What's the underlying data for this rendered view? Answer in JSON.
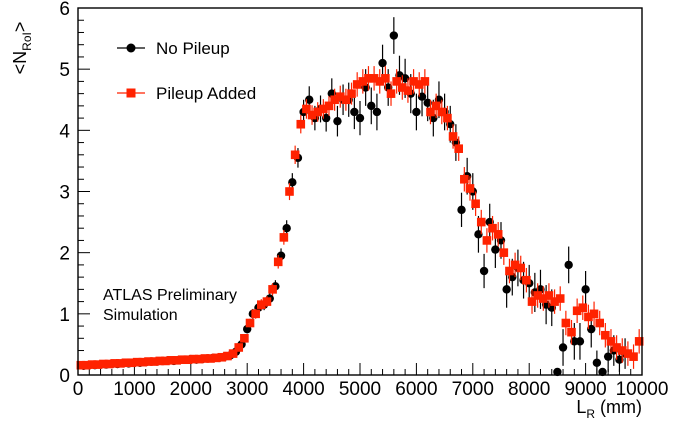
{
  "chart_data": {
    "type": "scatter",
    "xlabel": {
      "main": "L",
      "sub": "R",
      "unit": " (mm)"
    },
    "ylabel": {
      "pre": "<N",
      "sub": "RoI",
      "post": ">"
    },
    "xlim": [
      0,
      10000
    ],
    "ylim": [
      0,
      6
    ],
    "xticks": [
      0,
      1000,
      2000,
      3000,
      4000,
      5000,
      6000,
      7000,
      8000,
      9000,
      10000
    ],
    "yticks": [
      0,
      1,
      2,
      3,
      4,
      5,
      6
    ],
    "grid": false,
    "legend_position": "top-left",
    "annotations": [
      "ATLAS Preliminary",
      "Simulation"
    ],
    "series": [
      {
        "name": "No Pileup",
        "color": "#000000",
        "marker": "circle",
        "points": [
          [
            100,
            0.15,
            0.02
          ],
          [
            200,
            0.16,
            0.02
          ],
          [
            300,
            0.16,
            0.02
          ],
          [
            400,
            0.17,
            0.02
          ],
          [
            500,
            0.17,
            0.02
          ],
          [
            600,
            0.18,
            0.02
          ],
          [
            700,
            0.18,
            0.02
          ],
          [
            800,
            0.19,
            0.02
          ],
          [
            900,
            0.19,
            0.02
          ],
          [
            1000,
            0.2,
            0.02
          ],
          [
            1100,
            0.2,
            0.02
          ],
          [
            1200,
            0.21,
            0.02
          ],
          [
            1300,
            0.22,
            0.03
          ],
          [
            1400,
            0.22,
            0.03
          ],
          [
            1500,
            0.23,
            0.03
          ],
          [
            1600,
            0.24,
            0.03
          ],
          [
            1700,
            0.23,
            0.03
          ],
          [
            1800,
            0.25,
            0.03
          ],
          [
            1900,
            0.25,
            0.03
          ],
          [
            2000,
            0.26,
            0.03
          ],
          [
            2100,
            0.25,
            0.03
          ],
          [
            2200,
            0.26,
            0.03
          ],
          [
            2300,
            0.27,
            0.03
          ],
          [
            2400,
            0.28,
            0.03
          ],
          [
            2500,
            0.28,
            0.03
          ],
          [
            2600,
            0.3,
            0.04
          ],
          [
            2700,
            0.32,
            0.04
          ],
          [
            2800,
            0.38,
            0.05
          ],
          [
            2900,
            0.5,
            0.05
          ],
          [
            3000,
            0.75,
            0.07
          ],
          [
            3100,
            1.0,
            0.08
          ],
          [
            3200,
            1.1,
            0.08
          ],
          [
            3300,
            1.15,
            0.09
          ],
          [
            3400,
            1.25,
            0.09
          ],
          [
            3500,
            1.45,
            0.1
          ],
          [
            3600,
            1.95,
            0.12
          ],
          [
            3700,
            2.4,
            0.13
          ],
          [
            3800,
            3.15,
            0.15
          ],
          [
            3900,
            3.55,
            0.16
          ],
          [
            4000,
            4.3,
            0.2
          ],
          [
            4100,
            4.5,
            0.22
          ],
          [
            4200,
            4.2,
            0.2
          ],
          [
            4300,
            4.35,
            0.22
          ],
          [
            4400,
            4.2,
            0.22
          ],
          [
            4500,
            4.6,
            0.25
          ],
          [
            4600,
            4.15,
            0.25
          ],
          [
            4700,
            4.5,
            0.25
          ],
          [
            4800,
            4.5,
            0.28
          ],
          [
            4900,
            4.3,
            0.28
          ],
          [
            5000,
            4.2,
            0.28
          ],
          [
            5100,
            4.7,
            0.3
          ],
          [
            5200,
            4.4,
            0.3
          ],
          [
            5300,
            4.3,
            0.3
          ],
          [
            5400,
            5.1,
            0.3
          ],
          [
            5500,
            4.7,
            0.3
          ],
          [
            5600,
            5.55,
            0.3
          ],
          [
            5700,
            4.9,
            0.32
          ],
          [
            5800,
            4.85,
            0.32
          ],
          [
            5900,
            4.6,
            0.32
          ],
          [
            6000,
            4.3,
            0.3
          ],
          [
            6100,
            4.55,
            0.32
          ],
          [
            6200,
            4.45,
            0.3
          ],
          [
            6300,
            4.2,
            0.3
          ],
          [
            6400,
            4.5,
            0.3
          ],
          [
            6500,
            4.3,
            0.3
          ],
          [
            6600,
            4.1,
            0.3
          ],
          [
            6700,
            3.8,
            0.3
          ],
          [
            6800,
            2.7,
            0.28
          ],
          [
            6900,
            3.25,
            0.3
          ],
          [
            7000,
            3.0,
            0.3
          ],
          [
            7100,
            2.3,
            0.3
          ],
          [
            7200,
            1.7,
            0.28
          ],
          [
            7300,
            2.5,
            0.3
          ],
          [
            7400,
            2.05,
            0.3
          ],
          [
            7500,
            2.2,
            0.3
          ],
          [
            7600,
            1.4,
            0.3
          ],
          [
            7700,
            1.6,
            0.3
          ],
          [
            7800,
            1.75,
            0.3
          ],
          [
            7900,
            1.55,
            0.3
          ],
          [
            8000,
            1.5,
            0.3
          ],
          [
            8100,
            1.35,
            0.32
          ],
          [
            8200,
            1.4,
            0.32
          ],
          [
            8300,
            1.15,
            0.32
          ],
          [
            8400,
            1.1,
            0.3
          ],
          [
            8500,
            0.05,
            0.05
          ],
          [
            8600,
            0.45,
            0.3
          ],
          [
            8700,
            1.8,
            0.3
          ],
          [
            8800,
            0.55,
            0.3
          ],
          [
            8900,
            0.55,
            0.3
          ],
          [
            9000,
            1.4,
            0.3
          ],
          [
            9100,
            0.75,
            0.3
          ],
          [
            9200,
            0.2,
            0.2
          ],
          [
            9300,
            0.05,
            0.05
          ],
          [
            9400,
            0.3,
            0.25
          ],
          [
            9500,
            0.4,
            0.25
          ],
          [
            9600,
            0.25,
            0.2
          ],
          [
            9700,
            0.35,
            0.25
          ]
        ]
      },
      {
        "name": "Pileup Added",
        "color": "#ff2200",
        "marker": "square",
        "points": [
          [
            50,
            0.16,
            0.02
          ],
          [
            150,
            0.16,
            0.02
          ],
          [
            250,
            0.17,
            0.02
          ],
          [
            350,
            0.17,
            0.02
          ],
          [
            450,
            0.18,
            0.02
          ],
          [
            550,
            0.18,
            0.02
          ],
          [
            650,
            0.19,
            0.02
          ],
          [
            750,
            0.19,
            0.02
          ],
          [
            850,
            0.2,
            0.02
          ],
          [
            950,
            0.2,
            0.02
          ],
          [
            1050,
            0.21,
            0.02
          ],
          [
            1150,
            0.21,
            0.02
          ],
          [
            1250,
            0.22,
            0.03
          ],
          [
            1350,
            0.22,
            0.03
          ],
          [
            1450,
            0.23,
            0.03
          ],
          [
            1550,
            0.23,
            0.03
          ],
          [
            1650,
            0.24,
            0.03
          ],
          [
            1750,
            0.24,
            0.03
          ],
          [
            1850,
            0.25,
            0.03
          ],
          [
            1950,
            0.25,
            0.03
          ],
          [
            2050,
            0.26,
            0.03
          ],
          [
            2150,
            0.26,
            0.03
          ],
          [
            2250,
            0.27,
            0.03
          ],
          [
            2350,
            0.27,
            0.03
          ],
          [
            2450,
            0.28,
            0.03
          ],
          [
            2550,
            0.29,
            0.04
          ],
          [
            2650,
            0.31,
            0.04
          ],
          [
            2750,
            0.35,
            0.05
          ],
          [
            2850,
            0.45,
            0.05
          ],
          [
            2950,
            0.6,
            0.06
          ],
          [
            3050,
            0.85,
            0.07
          ],
          [
            3150,
            1.0,
            0.08
          ],
          [
            3250,
            1.15,
            0.09
          ],
          [
            3350,
            1.2,
            0.09
          ],
          [
            3450,
            1.4,
            0.1
          ],
          [
            3550,
            1.85,
            0.11
          ],
          [
            3650,
            2.25,
            0.12
          ],
          [
            3750,
            3.0,
            0.14
          ],
          [
            3850,
            3.6,
            0.15
          ],
          [
            3950,
            4.1,
            0.15
          ],
          [
            4050,
            4.35,
            0.16
          ],
          [
            4150,
            4.25,
            0.16
          ],
          [
            4250,
            4.3,
            0.16
          ],
          [
            4350,
            4.35,
            0.16
          ],
          [
            4450,
            4.4,
            0.16
          ],
          [
            4550,
            4.5,
            0.18
          ],
          [
            4650,
            4.55,
            0.18
          ],
          [
            4750,
            4.5,
            0.18
          ],
          [
            4850,
            4.6,
            0.18
          ],
          [
            4950,
            4.75,
            0.2
          ],
          [
            5050,
            4.8,
            0.2
          ],
          [
            5150,
            4.85,
            0.2
          ],
          [
            5250,
            4.85,
            0.2
          ],
          [
            5350,
            4.8,
            0.2
          ],
          [
            5450,
            4.85,
            0.2
          ],
          [
            5550,
            4.6,
            0.2
          ],
          [
            5650,
            4.8,
            0.2
          ],
          [
            5750,
            4.7,
            0.2
          ],
          [
            5850,
            4.65,
            0.2
          ],
          [
            5950,
            4.8,
            0.2
          ],
          [
            6050,
            4.75,
            0.2
          ],
          [
            6150,
            4.8,
            0.2
          ],
          [
            6250,
            4.3,
            0.2
          ],
          [
            6350,
            4.4,
            0.2
          ],
          [
            6450,
            4.3,
            0.2
          ],
          [
            6550,
            4.2,
            0.2
          ],
          [
            6650,
            3.9,
            0.2
          ],
          [
            6750,
            3.7,
            0.2
          ],
          [
            6850,
            3.2,
            0.2
          ],
          [
            6950,
            3.05,
            0.2
          ],
          [
            7050,
            2.8,
            0.2
          ],
          [
            7150,
            2.5,
            0.2
          ],
          [
            7250,
            2.2,
            0.2
          ],
          [
            7350,
            2.4,
            0.2
          ],
          [
            7450,
            2.3,
            0.2
          ],
          [
            7550,
            2.0,
            0.2
          ],
          [
            7650,
            1.7,
            0.2
          ],
          [
            7750,
            1.8,
            0.2
          ],
          [
            7850,
            1.75,
            0.2
          ],
          [
            7950,
            1.55,
            0.2
          ],
          [
            8050,
            1.2,
            0.2
          ],
          [
            8150,
            1.3,
            0.2
          ],
          [
            8250,
            1.25,
            0.2
          ],
          [
            8350,
            1.3,
            0.2
          ],
          [
            8450,
            1.2,
            0.2
          ],
          [
            8550,
            1.25,
            0.2
          ],
          [
            8650,
            0.85,
            0.2
          ],
          [
            8750,
            0.7,
            0.2
          ],
          [
            8850,
            1.05,
            0.2
          ],
          [
            8950,
            1.1,
            0.2
          ],
          [
            9050,
            0.95,
            0.2
          ],
          [
            9150,
            1.0,
            0.2
          ],
          [
            9250,
            0.85,
            0.2
          ],
          [
            9350,
            0.65,
            0.2
          ],
          [
            9450,
            0.55,
            0.2
          ],
          [
            9550,
            0.45,
            0.2
          ],
          [
            9650,
            0.4,
            0.2
          ],
          [
            9750,
            0.35,
            0.2
          ],
          [
            9850,
            0.3,
            0.2
          ],
          [
            9950,
            0.55,
            0.2
          ]
        ]
      }
    ]
  }
}
